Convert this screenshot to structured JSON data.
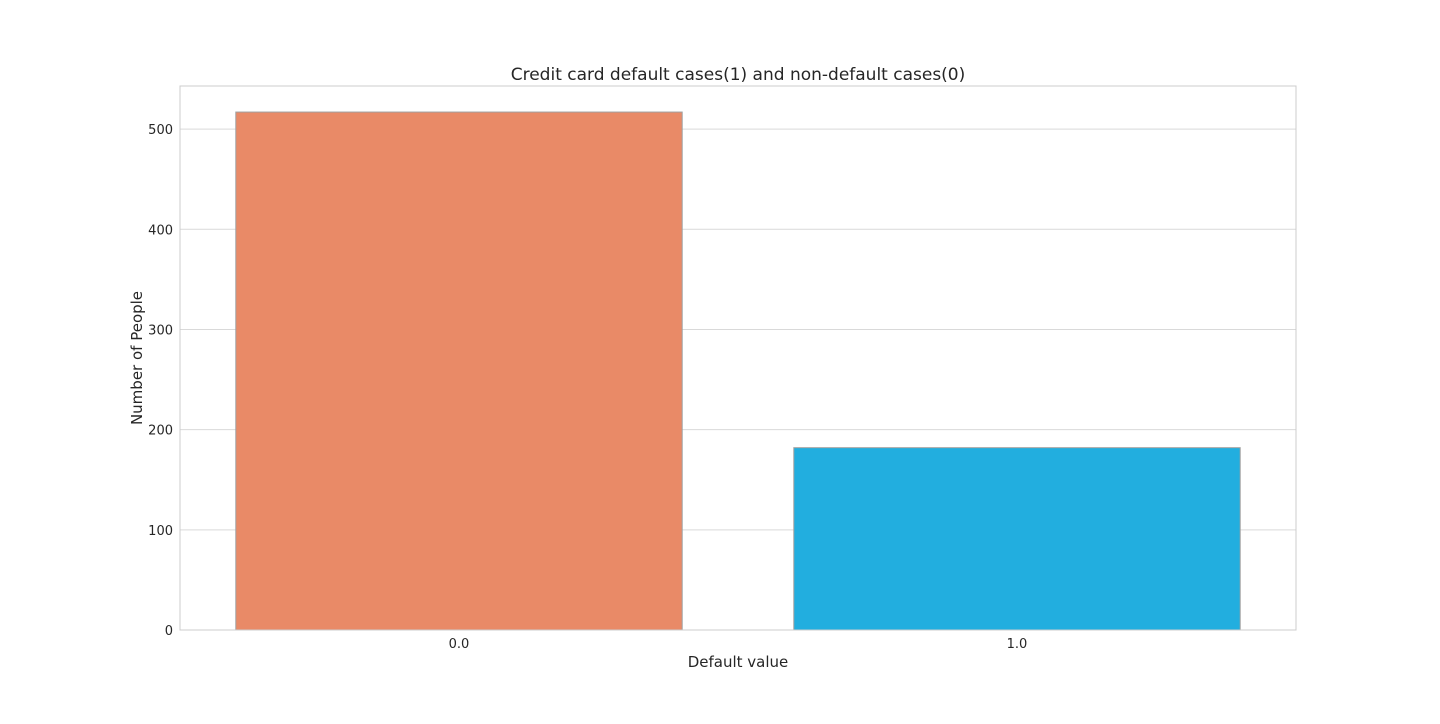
{
  "chart_data": {
    "type": "bar",
    "title": "Credit card default cases(1) and non-default cases(0)",
    "xlabel": "Default value",
    "ylabel": "Number of People",
    "categories": [
      "0.0",
      "1.0"
    ],
    "values": [
      517,
      182
    ],
    "colors": [
      "#e98a67",
      "#22aedf"
    ],
    "ylim": [
      0,
      543
    ],
    "yticks": [
      0,
      100,
      200,
      300,
      400,
      500
    ],
    "grid": true,
    "legend": "none"
  },
  "style": {
    "grid_color": "#d9d9d9",
    "frame_color": "#cccccc",
    "bar_edge_color": "#a0a0a0",
    "background": "#ffffff"
  }
}
